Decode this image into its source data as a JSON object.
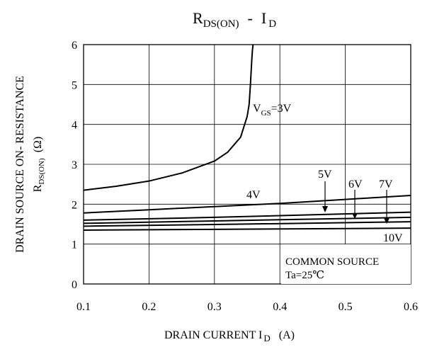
{
  "chart_data": {
    "type": "line",
    "title": "R",
    "title_sub": "DS(ON)",
    "title_sep": "-",
    "title_tail": "I",
    "title_tail_sub": "D",
    "xlabel": "DRAIN CURRENT I",
    "xlabel_sub": "D",
    "xlabel_unit": "(A)",
    "ylabel_line1": "DRAIN SOURCE ON- RESISTANCE",
    "ylabel_line2": "R",
    "ylabel_line2_sub": "DS(ON)",
    "ylabel_line2_unit": "(Ω)",
    "xlim": [
      0.1,
      0.6
    ],
    "ylim": [
      0,
      6
    ],
    "xticks": [
      "0.1",
      "0.2",
      "0.3",
      "0.4",
      "0.5",
      "0.6"
    ],
    "yticks": [
      "0",
      "1",
      "2",
      "3",
      "4",
      "5",
      "6"
    ],
    "grid": true,
    "series": [
      {
        "name": "VGS=3V",
        "x": [
          0.1,
          0.15,
          0.2,
          0.25,
          0.3,
          0.32,
          0.34,
          0.35,
          0.353,
          0.355,
          0.356,
          0.357,
          0.358,
          0.359
        ],
        "y": [
          2.35,
          2.45,
          2.58,
          2.78,
          3.08,
          3.3,
          3.68,
          4.2,
          4.5,
          5.0,
          5.3,
          5.6,
          5.85,
          6.0
        ]
      },
      {
        "name": "4V",
        "x": [
          0.1,
          0.2,
          0.3,
          0.4,
          0.5,
          0.6
        ],
        "y": [
          1.78,
          1.86,
          1.94,
          2.02,
          2.12,
          2.22
        ]
      },
      {
        "name": "5V",
        "x": [
          0.1,
          0.3,
          0.6
        ],
        "y": [
          1.6,
          1.67,
          1.8
        ]
      },
      {
        "name": "6V",
        "x": [
          0.1,
          0.3,
          0.6
        ],
        "y": [
          1.52,
          1.58,
          1.67
        ]
      },
      {
        "name": "7V",
        "x": [
          0.1,
          0.3,
          0.6
        ],
        "y": [
          1.45,
          1.49,
          1.56
        ]
      },
      {
        "name": "10V",
        "x": [
          0.1,
          0.3,
          0.6
        ],
        "y": [
          1.35,
          1.37,
          1.4
        ]
      }
    ],
    "annotations": {
      "vgs3_main": "V",
      "vgs3_sub": "GS",
      "vgs3_tail": "=3V",
      "v4": "4V",
      "v5": "5V",
      "v6": "6V",
      "v7": "7V",
      "v10": "10V",
      "common_source": "COMMON SOURCE",
      "ta": "Ta=25℃"
    }
  }
}
